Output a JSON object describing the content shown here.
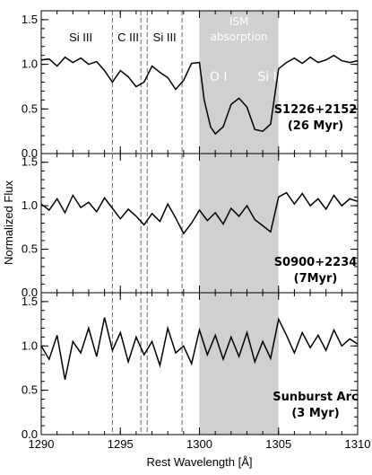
{
  "chart_data": {
    "type": "line",
    "xlabel": "Rest Wavelength [Å]",
    "ylabel": "Normalized Flux",
    "xlim": [
      1290,
      1310
    ],
    "x_ticks": [
      "1290",
      "1295",
      "1300",
      "1305",
      "1310"
    ],
    "y_ticks": [
      "0.0",
      "0.5",
      "1.0",
      "1.5"
    ],
    "ylim": [
      0,
      1.6
    ],
    "shaded_region": {
      "x_range": [
        1300.0,
        1305.0
      ],
      "color": "#d0d0d0",
      "label_lines": [
        "ISM",
        "absorption"
      ]
    },
    "reference_lines": [
      {
        "x": 1294.5,
        "style": "dashed"
      },
      {
        "x": 1296.3,
        "style": "dashed"
      },
      {
        "x": 1296.7,
        "style": "dashed"
      },
      {
        "x": 1298.9,
        "style": "dashed"
      }
    ],
    "ion_labels": [
      {
        "text": "Si III",
        "x": 1292.5
      },
      {
        "text": "C III",
        "x": 1295.5
      },
      {
        "text": "Si III",
        "x": 1297.8
      }
    ],
    "ism_ion_labels": [
      {
        "text": "O I",
        "x": 1301.2
      },
      {
        "text": "Si II",
        "x": 1304.4
      }
    ],
    "panels": [
      {
        "name": "S1226+2152",
        "label_lines": [
          "S1226+2152",
          "(26 Myr)"
        ],
        "x": [
          1290.0,
          1290.5,
          1291.0,
          1291.5,
          1292.0,
          1292.5,
          1293.0,
          1293.5,
          1294.0,
          1294.5,
          1295.0,
          1295.5,
          1296.0,
          1296.5,
          1297.0,
          1297.5,
          1298.0,
          1298.5,
          1299.0,
          1299.5,
          1300.0,
          1300.3,
          1300.7,
          1301.0,
          1301.5,
          1302.0,
          1302.5,
          1303.0,
          1303.5,
          1304.0,
          1304.5,
          1305.0,
          1305.5,
          1306.0,
          1306.5,
          1307.0,
          1307.5,
          1308.0,
          1308.5,
          1309.0,
          1309.5,
          1310.0
        ],
        "values": [
          1.05,
          1.06,
          0.98,
          1.08,
          1.02,
          1.07,
          1.0,
          1.03,
          0.93,
          0.8,
          0.93,
          0.86,
          0.75,
          0.8,
          0.98,
          0.91,
          0.85,
          0.72,
          0.82,
          1.01,
          1.02,
          0.6,
          0.3,
          0.22,
          0.3,
          0.55,
          0.62,
          0.52,
          0.27,
          0.25,
          0.33,
          0.95,
          1.02,
          1.07,
          1.01,
          1.08,
          1.02,
          1.05,
          1.1,
          1.04,
          1.02,
          1.04
        ]
      },
      {
        "name": "S0900+2234",
        "label_lines": [
          "S0900+2234",
          "(7Myr)"
        ],
        "x": [
          1290.0,
          1290.5,
          1291.0,
          1291.5,
          1292.0,
          1292.5,
          1293.0,
          1293.5,
          1294.0,
          1294.5,
          1295.0,
          1295.5,
          1296.0,
          1296.5,
          1297.0,
          1297.5,
          1298.0,
          1298.5,
          1299.0,
          1299.5,
          1300.0,
          1300.5,
          1301.0,
          1301.5,
          1302.0,
          1302.5,
          1303.0,
          1303.5,
          1304.0,
          1304.5,
          1305.0,
          1305.5,
          1306.0,
          1306.5,
          1307.0,
          1307.5,
          1308.0,
          1308.5,
          1309.0,
          1309.5,
          1310.0
        ],
        "values": [
          1.02,
          0.95,
          1.08,
          0.92,
          1.12,
          0.98,
          1.04,
          0.93,
          1.09,
          0.97,
          0.85,
          0.96,
          0.88,
          0.78,
          0.91,
          0.82,
          1.02,
          0.86,
          0.68,
          0.8,
          0.95,
          0.83,
          0.92,
          0.79,
          0.97,
          0.88,
          1.0,
          0.84,
          0.77,
          0.7,
          1.1,
          1.15,
          1.02,
          1.14,
          1.0,
          1.08,
          0.96,
          1.12,
          1.0,
          1.08,
          1.05
        ]
      },
      {
        "name": "Sunburst Arc",
        "label_lines": [
          "Sunburst Arc",
          "(3 Myr)"
        ],
        "x": [
          1290.0,
          1290.5,
          1291.0,
          1291.5,
          1292.0,
          1292.5,
          1293.0,
          1293.5,
          1294.0,
          1294.5,
          1295.0,
          1295.5,
          1296.0,
          1296.5,
          1297.0,
          1297.5,
          1298.0,
          1298.5,
          1299.0,
          1299.5,
          1300.0,
          1300.5,
          1301.0,
          1301.5,
          1302.0,
          1302.5,
          1303.0,
          1303.5,
          1304.0,
          1304.5,
          1305.0,
          1305.5,
          1306.0,
          1306.5,
          1307.0,
          1307.5,
          1308.0,
          1308.5,
          1309.0,
          1309.5,
          1310.0
        ],
        "values": [
          1.0,
          0.85,
          1.12,
          0.62,
          1.05,
          0.92,
          1.2,
          0.88,
          1.32,
          0.95,
          1.15,
          0.82,
          1.1,
          0.9,
          1.05,
          0.78,
          1.2,
          0.92,
          1.0,
          0.8,
          1.18,
          0.9,
          1.12,
          0.85,
          1.1,
          0.88,
          1.15,
          0.82,
          1.05,
          0.86,
          1.3,
          1.12,
          0.92,
          1.15,
          0.98,
          1.12,
          0.95,
          1.18,
          1.0,
          1.08,
          1.02
        ]
      }
    ]
  }
}
